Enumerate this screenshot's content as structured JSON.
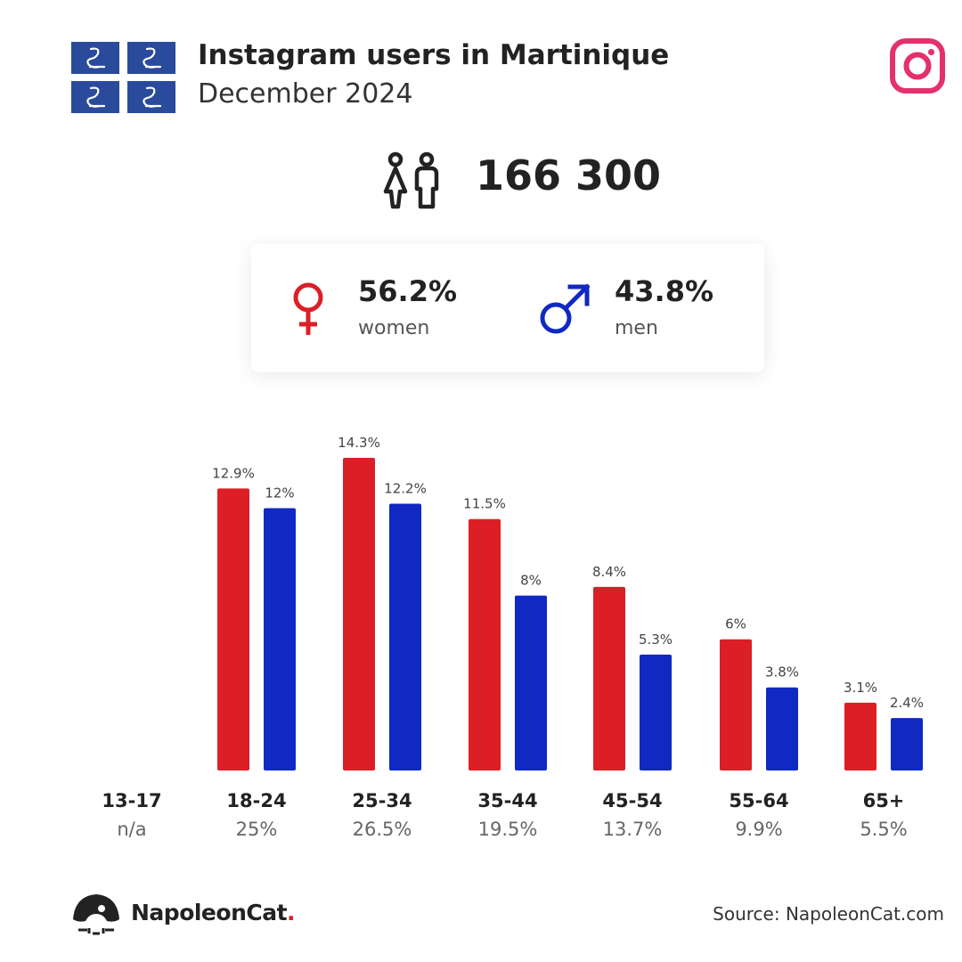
{
  "header": {
    "title": "Instagram users in Martinique",
    "subtitle": "December 2024"
  },
  "total": {
    "value": "166 300"
  },
  "gender": {
    "women": {
      "pct": "56.2%",
      "label": "women",
      "color": "#dc1f26"
    },
    "men": {
      "pct": "43.8%",
      "label": "men",
      "color": "#1029c2"
    }
  },
  "chart_data": {
    "type": "bar",
    "categories": [
      "13-17",
      "18-24",
      "25-34",
      "35-44",
      "45-54",
      "55-64",
      "65+"
    ],
    "category_totals": [
      "n/a",
      "25%",
      "26.5%",
      "19.5%",
      "13.7%",
      "9.9%",
      "5.5%"
    ],
    "series": [
      {
        "color": "#dc1f26",
        "values": [
          null,
          12.9,
          14.3,
          11.5,
          8.4,
          6,
          3.1
        ],
        "labels": [
          "",
          "12.9%",
          "14.3%",
          "11.5%",
          "8.4%",
          "6%",
          "3.1%"
        ]
      },
      {
        "color": "#1029c2",
        "values": [
          null,
          12,
          12.2,
          8,
          5.3,
          3.8,
          2.4
        ],
        "labels": [
          "",
          "12%",
          "12.2%",
          "8%",
          "5.3%",
          "3.8%",
          "2.4%"
        ]
      }
    ],
    "ylim": [
      0,
      14.3
    ],
    "grid": false,
    "legend": "none"
  },
  "footer": {
    "brand": "NapoleonCat",
    "brand_dot": ".",
    "source": "Source: NapoleonCat.com"
  },
  "icons": {
    "flag": "martinique-flag-icon",
    "instagram": "instagram-icon",
    "people": "people-icon",
    "female": "female-icon",
    "male": "male-icon",
    "logo": "napoleoncat-logo-icon"
  }
}
